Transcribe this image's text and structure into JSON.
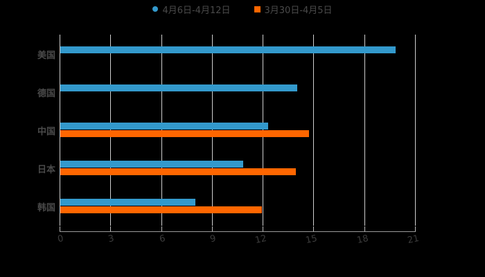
{
  "chart_data": {
    "type": "bar",
    "orientation": "horizontal",
    "title": "",
    "xlabel": "",
    "ylabel": "",
    "categories": [
      "美国",
      "德国",
      "中国",
      "日本",
      "韩国"
    ],
    "series": [
      {
        "name": "4月6日-4月12日",
        "color": "#3399cc",
        "values": [
          19.8,
          14.0,
          12.3,
          10.8,
          8.0
        ]
      },
      {
        "name": "3月30日-4月5日",
        "color": "#ff6600",
        "values": [
          null,
          null,
          14.7,
          13.9,
          11.9
        ]
      }
    ],
    "xlim": [
      0,
      21
    ],
    "x_ticks": [
      "0",
      "3",
      "6",
      "9",
      "12",
      "15",
      "18",
      "21"
    ],
    "grid": true,
    "legend_position": "top"
  },
  "legend": [
    {
      "label": "4月6日-4月12日",
      "color": "#3399cc",
      "shape": "circle"
    },
    {
      "label": "3月30日-4月5日",
      "color": "#ff6600",
      "shape": "square"
    }
  ],
  "colors": {
    "background": "#000000",
    "grid": "#cfcfcf",
    "axis": "#9a9a9a",
    "text": "#4a4a4a"
  }
}
